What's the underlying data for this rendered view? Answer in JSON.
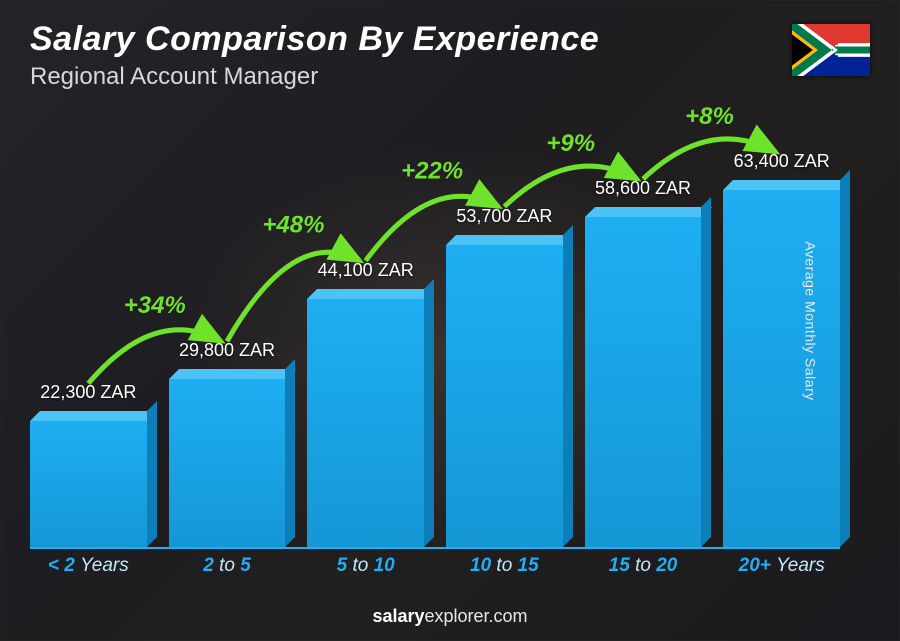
{
  "header": {
    "title": "Salary Comparison By Experience",
    "subtitle": "Regional Account Manager"
  },
  "flag": {
    "country": "South Africa"
  },
  "chart": {
    "type": "bar",
    "ylabel": "Average Monthly Salary",
    "currency": "ZAR",
    "max_value": 63400,
    "bar_color": "#1eaef2",
    "bar_top_color": "#4cc3f7",
    "bar_side_color": "#0d7fb8",
    "axis_color": "#1eaef2",
    "pct_color": "#6fe22b",
    "value_text_color": "#ffffff",
    "background_overlay": "rgba(10,10,15,0.45)",
    "value_fontsize": 18,
    "xaxis_fontsize": 19,
    "pct_fontsize": 24,
    "bars": [
      {
        "category_html": "< 2 <span class='dim'>Years</span>",
        "category": "< 2 Years",
        "value": 22300,
        "label": "22,300 ZAR"
      },
      {
        "category_html": "2 <span class='dim'>to</span> 5",
        "category": "2 to 5",
        "value": 29800,
        "label": "29,800 ZAR",
        "pct": "+34%"
      },
      {
        "category_html": "5 <span class='dim'>to</span> 10",
        "category": "5 to 10",
        "value": 44100,
        "label": "44,100 ZAR",
        "pct": "+48%"
      },
      {
        "category_html": "10 <span class='dim'>to</span> 15",
        "category": "10 to 15",
        "value": 53700,
        "label": "53,700 ZAR",
        "pct": "+22%"
      },
      {
        "category_html": "15 <span class='dim'>to</span> 20",
        "category": "15 to 20",
        "value": 58600,
        "label": "58,600 ZAR",
        "pct": "+9%"
      },
      {
        "category_html": "20+ <span class='dim'>Years</span>",
        "category": "20+ Years",
        "value": 63400,
        "label": "63,400 ZAR",
        "pct": "+8%"
      }
    ]
  },
  "footer": {
    "site_bold": "salary",
    "site_rest": "explorer.com"
  }
}
